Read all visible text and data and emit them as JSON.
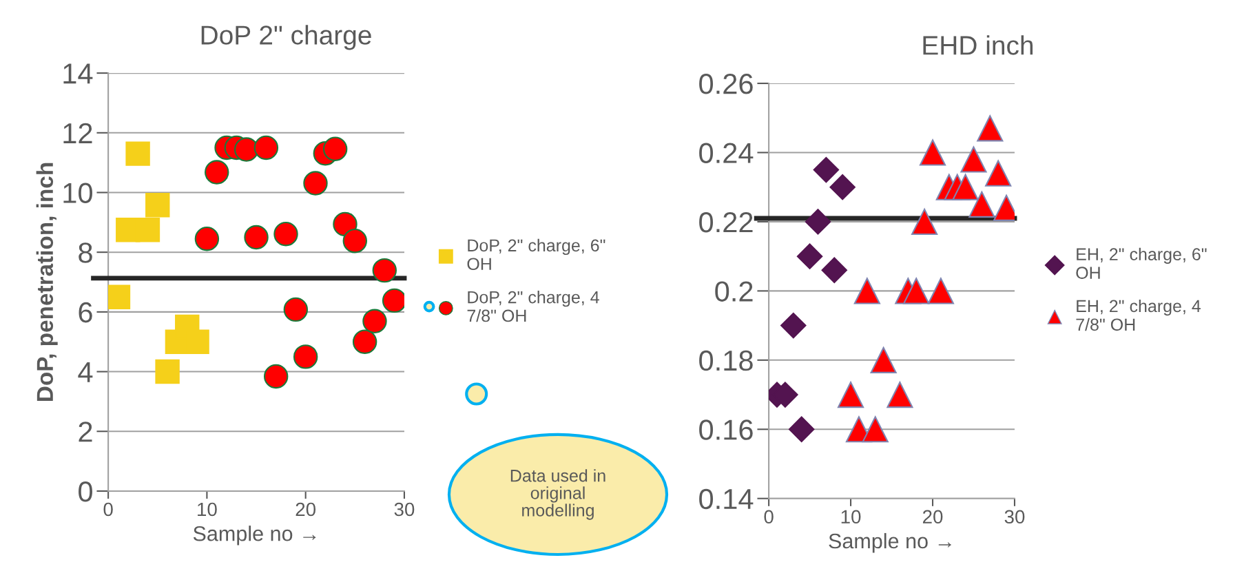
{
  "chart_data": [
    {
      "type": "scatter",
      "title": "DoP 2\" charge",
      "xlabel": "Sample no →",
      "ylabel": "DoP, penetration, inch",
      "xlim": [
        0,
        30
      ],
      "xticks": [
        0,
        10,
        20,
        30
      ],
      "ylim": [
        0,
        14
      ],
      "yticks": [
        0,
        2,
        4,
        6,
        8,
        10,
        12,
        14
      ],
      "grid": "y",
      "legend": "right",
      "series": [
        {
          "name": "DoP, 2\" charge, 6\" OH",
          "color": "#f5d01a",
          "marker": "square",
          "x": [
            1,
            2,
            3,
            4,
            5,
            6,
            7,
            8,
            9
          ],
          "values": [
            6.5,
            8.75,
            11.3,
            8.75,
            9.58,
            4.0,
            5.0,
            5.5,
            5.0
          ]
        },
        {
          "name": "DoP, 2\" charge, 4 7/8\" OH",
          "color": "#ff0000",
          "marker": "circle",
          "x": [
            10,
            11,
            12,
            13,
            14,
            15,
            16,
            17,
            18,
            19,
            20,
            21,
            22,
            23,
            24,
            25,
            26,
            27,
            28,
            29
          ],
          "values": [
            8.45,
            10.68,
            11.5,
            11.5,
            11.44,
            8.5,
            11.5,
            3.84,
            8.61,
            6.08,
            4.5,
            10.31,
            11.31,
            11.46,
            8.94,
            8.38,
            5.0,
            5.69,
            7.39,
            6.38
          ]
        }
      ],
      "ref_lines": [
        {
          "axis": "y",
          "value": 7.13,
          "color": "#262626"
        }
      ],
      "annotations": [
        "Data used in original modelling"
      ]
    },
    {
      "type": "scatter",
      "title": "EHD inch",
      "xlabel": "Sample no →",
      "xlim": [
        0,
        30
      ],
      "xticks": [
        0,
        10,
        20,
        30
      ],
      "ylim": [
        0.14,
        0.26
      ],
      "yticks": [
        0.14,
        0.16,
        0.18,
        0.2,
        0.22,
        0.24,
        0.26
      ],
      "grid": "y",
      "legend": "right",
      "series": [
        {
          "name": "EH, 2\" charge, 6\" OH",
          "color": "#531450",
          "marker": "diamond",
          "x": [
            1,
            2,
            3,
            4,
            5,
            6,
            7,
            8,
            9
          ],
          "values": [
            0.17,
            0.17,
            0.19,
            0.16,
            0.21,
            0.22,
            0.235,
            0.206,
            0.23
          ]
        },
        {
          "name": "EH, 2\" charge, 4 7/8\" OH",
          "color": "#ff0000",
          "marker": "triangle",
          "x": [
            10,
            11,
            12,
            13,
            14,
            16,
            17,
            18,
            19,
            20,
            21,
            22,
            23,
            24,
            25,
            26,
            27,
            28,
            29
          ],
          "values": [
            0.17,
            0.16,
            0.2,
            0.16,
            0.18,
            0.17,
            0.2,
            0.2,
            0.22,
            0.24,
            0.2,
            0.23,
            0.23,
            0.23,
            0.238,
            0.225,
            0.247,
            0.234,
            0.224
          ]
        }
      ],
      "ref_lines": [
        {
          "axis": "y",
          "value": 0.221,
          "color": "#262626"
        }
      ]
    }
  ]
}
